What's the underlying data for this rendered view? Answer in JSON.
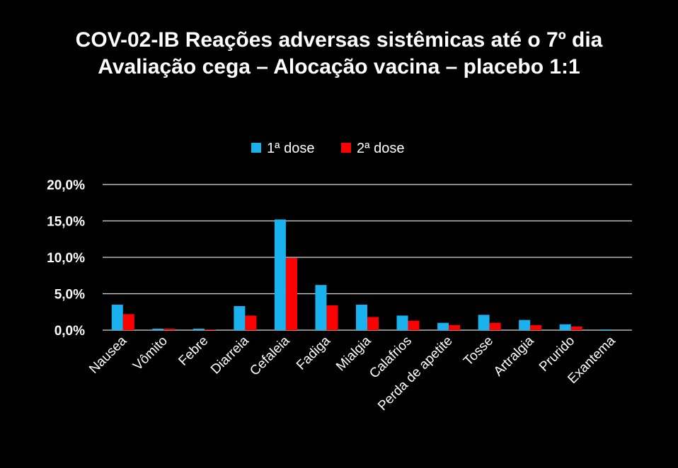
{
  "chart_data": {
    "type": "bar",
    "title": "COV-02-IB Reações adversas sistêmicas até o 7º dia",
    "subtitle": "Avaliação cega – Alocação vacina – placebo 1:1",
    "xlabel": "",
    "ylabel": "",
    "ylim": [
      0,
      20
    ],
    "yticks": [
      "0,0%",
      "5,0%",
      "10,0%",
      "15,0%",
      "20,0%"
    ],
    "ytick_values": [
      0,
      5,
      10,
      15,
      20
    ],
    "grid": true,
    "legend_position": "top-center",
    "categories": [
      "Nausea",
      "Vômito",
      "Febre",
      "Diarreia",
      "Cefaleia",
      "Fadiga",
      "Mialgia",
      "Calafrios",
      "Perda de apetite",
      "Tosse",
      "Artralgia",
      "Prurido",
      "Exantema"
    ],
    "series": [
      {
        "name": "1ª dose",
        "color": "#1AB2EE",
        "values": [
          3.5,
          0.2,
          0.2,
          3.3,
          15.2,
          6.2,
          3.5,
          2.0,
          1.0,
          2.1,
          1.4,
          0.8,
          0.1
        ]
      },
      {
        "name": "2ª dose",
        "color": "#FF0000",
        "values": [
          2.2,
          0.2,
          0.1,
          2.0,
          9.9,
          3.4,
          1.8,
          1.3,
          0.7,
          1.0,
          0.7,
          0.5,
          0.0
        ]
      }
    ],
    "colors": {
      "background": "#000000",
      "text": "#ffffff",
      "gridline": "#d9d9d9"
    }
  }
}
